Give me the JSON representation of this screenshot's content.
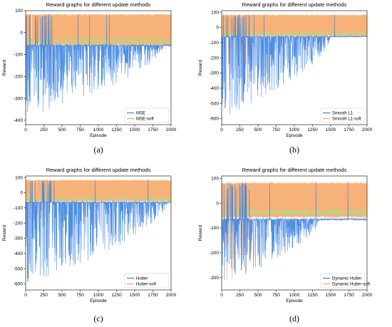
{
  "captions": [
    "(a)",
    "(b)",
    "(c)",
    "(d)"
  ],
  "colors": {
    "blue": "#3b82e0",
    "orange": "#f4a460",
    "green": "#90ee90"
  },
  "chart_data": [
    {
      "type": "line",
      "panel": "a",
      "title": "Reward graphs for different update methods",
      "xlabel": "Episode",
      "ylabel": "Reward",
      "xlim": [
        0,
        2000
      ],
      "ylim": [
        -420,
        100
      ],
      "xticks": [
        0,
        250,
        500,
        750,
        1000,
        1250,
        1500,
        1750,
        2000
      ],
      "yticks": [
        100,
        0,
        -100,
        -200,
        -300,
        -400
      ],
      "legend_position": "bottom-right",
      "series": [
        {
          "name": "MSE",
          "color": "#3b82e0",
          "baseline": -58,
          "high": 85,
          "low_min": -390,
          "low_max_episode": 1900
        },
        {
          "name": "MSE-soft",
          "color": "#f4a460",
          "baseline": -55,
          "high": 85,
          "low_min": -80
        }
      ]
    },
    {
      "type": "line",
      "panel": "b",
      "title": "Reward graphs for different update methods",
      "xlabel": "Episode",
      "ylabel": "Reward",
      "xlim": [
        0,
        2000
      ],
      "ylim": [
        -640,
        110
      ],
      "xticks": [
        0,
        250,
        500,
        750,
        1000,
        1250,
        1500,
        1750,
        2000
      ],
      "yticks": [
        100,
        0,
        -100,
        -200,
        -300,
        -400,
        -500,
        -600
      ],
      "legend_position": "bottom-right",
      "series": [
        {
          "name": "Smooth L1",
          "color": "#3b82e0",
          "baseline": -60,
          "high": 85,
          "low_min": -600,
          "low_max_episode": 1500
        },
        {
          "name": "Smooth L1-soft",
          "color": "#f4a460",
          "baseline": -55,
          "high": 85,
          "low_min": -280
        }
      ]
    },
    {
      "type": "line",
      "panel": "c",
      "title": "Reward graphs for different update methods",
      "xlabel": "Episode",
      "ylabel": "Reward",
      "xlim": [
        0,
        2000
      ],
      "ylim": [
        -640,
        110
      ],
      "xticks": [
        0,
        250,
        500,
        750,
        1000,
        1250,
        1500,
        1750,
        2000
      ],
      "yticks": [
        100,
        0,
        -100,
        -200,
        -300,
        -400,
        -500,
        -600
      ],
      "legend_position": "bottom-right",
      "series": [
        {
          "name": "Huber",
          "color": "#3b82e0",
          "baseline": -62,
          "high": 85,
          "low_min": -610,
          "low_max_episode": 1950
        },
        {
          "name": "Huber-soft",
          "color": "#f4a460",
          "baseline": -55,
          "high": 85,
          "low_min": -220
        }
      ]
    },
    {
      "type": "line",
      "panel": "d",
      "title": "Reward graphs for different update methods",
      "xlabel": "Episode",
      "ylabel": "Reward",
      "xlim": [
        0,
        2000
      ],
      "ylim": [
        -350,
        110
      ],
      "xticks": [
        0,
        250,
        500,
        750,
        1000,
        1250,
        1500,
        1750,
        2000
      ],
      "yticks": [
        100,
        0,
        -100,
        -200,
        -300
      ],
      "legend_position": "bottom-right",
      "series": [
        {
          "name": "Dynamic Huber",
          "color": "#3b82e0",
          "baseline": -65,
          "high": 85,
          "low_min": -330,
          "low_max_episode": 1350
        },
        {
          "name": "Dynamic Huber-soft",
          "color": "#f4a460",
          "baseline": -55,
          "high": 85,
          "low_min": -320
        }
      ]
    }
  ]
}
